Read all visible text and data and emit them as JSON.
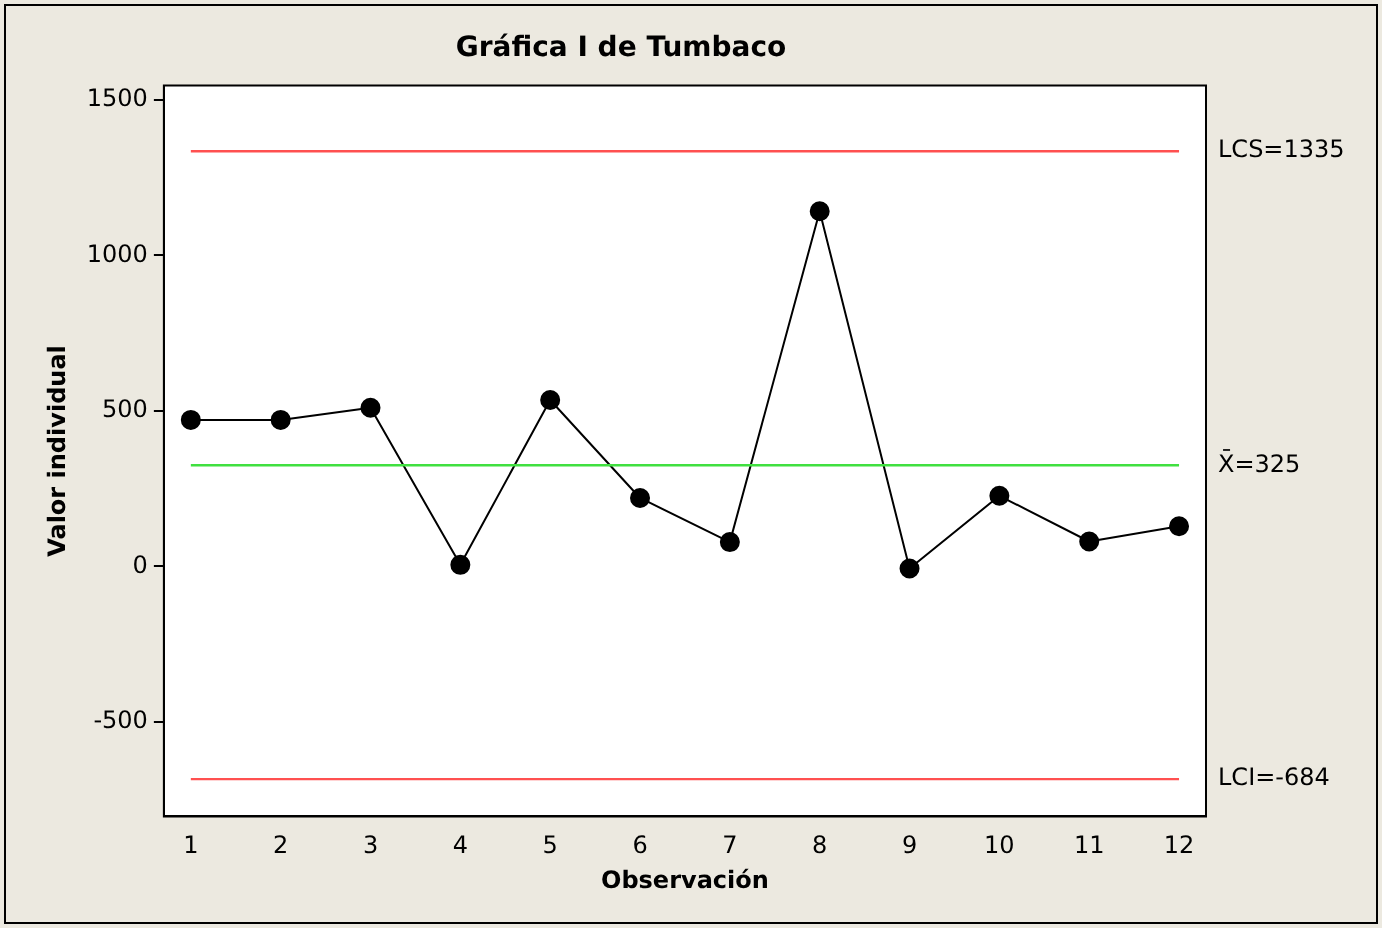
{
  "chart_data": {
    "type": "line",
    "title": "Gráfica I de Tumbaco",
    "xlabel": "Observación",
    "ylabel": "Valor individual",
    "x": [
      1,
      2,
      3,
      4,
      5,
      6,
      7,
      8,
      9,
      10,
      11,
      12
    ],
    "series": [
      {
        "color": "#000000",
        "values": [
          471,
          471,
          510,
          5,
          535,
          220,
          78,
          1142,
          -7,
          227,
          80,
          129
        ]
      }
    ],
    "xlim": [
      0.7,
      12.3
    ],
    "xticks": [
      1,
      2,
      3,
      4,
      5,
      6,
      7,
      8,
      9,
      10,
      11,
      12
    ],
    "ylim": [
      -804,
      1546
    ],
    "yticks": [
      -500,
      0,
      500,
      1000,
      1500
    ],
    "ref_lines": [
      {
        "axis": "y",
        "value": 1335,
        "label": "LCS=1335",
        "color": "#ff5050"
      },
      {
        "axis": "y",
        "value": 325,
        "label": "X̄=325",
        "color": "#40e040"
      },
      {
        "axis": "y",
        "value": -684,
        "label": "LCI=-684",
        "color": "#ff5050"
      }
    ],
    "grid": false,
    "legend": false,
    "marker": "circle",
    "line_style": "solid"
  }
}
